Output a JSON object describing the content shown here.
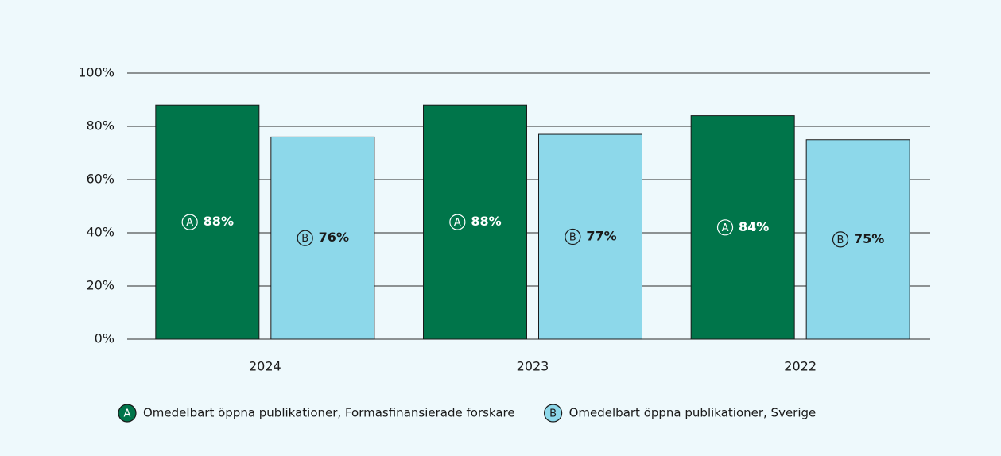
{
  "chart_data": {
    "type": "bar",
    "categories": [
      "2024",
      "2023",
      "2022"
    ],
    "series": [
      {
        "name": "Omedelbart öppna publikationer, Formasfinansierade forskare",
        "badge": "A",
        "color": "#00754a",
        "label_color": "#ffffff",
        "values": [
          88,
          88,
          84
        ],
        "value_labels": [
          "88%",
          "88%",
          "84%"
        ]
      },
      {
        "name": "Omedelbart öppna publikationer, Sverige",
        "badge": "B",
        "color": "#8dd8ea",
        "label_color": "#1a1a1a",
        "values": [
          76,
          77,
          75
        ],
        "value_labels": [
          "76%",
          "77%",
          "75%"
        ]
      }
    ],
    "ylim": [
      0,
      100
    ],
    "yticks": [
      {
        "value": 0,
        "label": "0%"
      },
      {
        "value": 20,
        "label": "20%"
      },
      {
        "value": 40,
        "label": "40%"
      },
      {
        "value": 60,
        "label": "60%"
      },
      {
        "value": 80,
        "label": "80%"
      },
      {
        "value": 100,
        "label": "100%"
      }
    ],
    "grid": true,
    "legend": "bottom"
  }
}
